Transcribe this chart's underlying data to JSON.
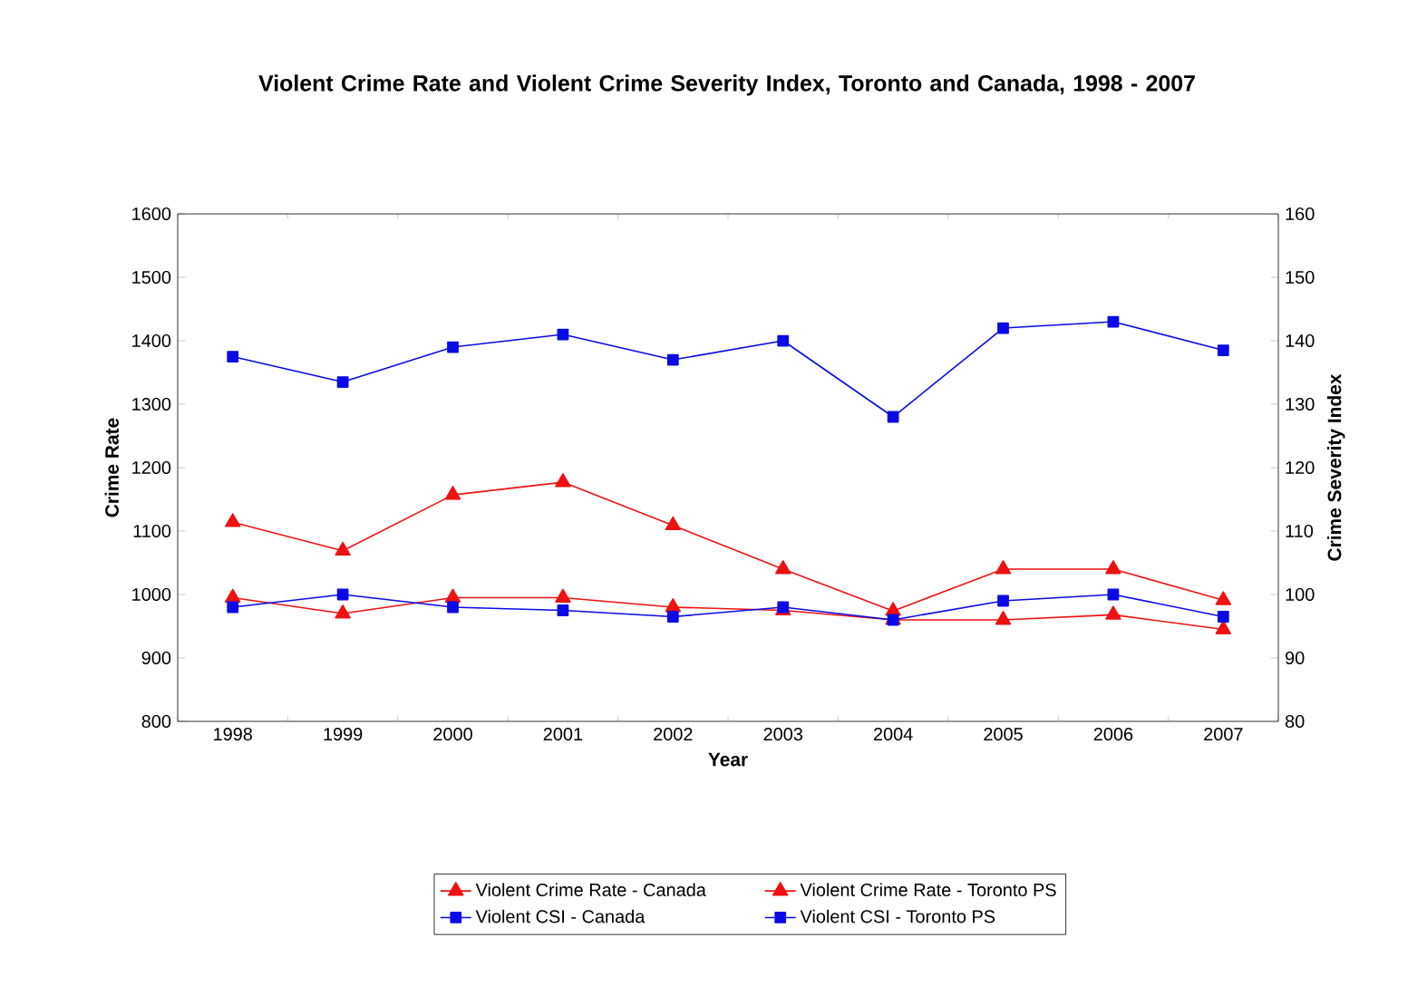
{
  "chart_data": {
    "type": "line",
    "title": "Violent Crime Rate and Violent Crime Severity Index, Toronto and Canada, 1998 - 2007",
    "xlabel": "Year",
    "ylabel": "Crime Rate",
    "y2label": "Crime Severity Index",
    "categories": [
      "1998",
      "1999",
      "2000",
      "2001",
      "2002",
      "2003",
      "2004",
      "2005",
      "2006",
      "2007"
    ],
    "ylim": [
      800,
      1600
    ],
    "yticks": [
      800,
      900,
      1000,
      1100,
      1200,
      1300,
      1400,
      1500,
      1600
    ],
    "y2lim": [
      80,
      160
    ],
    "y2ticks": [
      80,
      90,
      100,
      110,
      120,
      130,
      140,
      150,
      160
    ],
    "legend": "bottom",
    "grid": false,
    "line_style": "solid",
    "series": [
      {
        "name": "Violent Crime Rate - Canada",
        "color": "#ee1111",
        "marker": "triangle",
        "axis": "y",
        "values": [
          995,
          970,
          995,
          995,
          980,
          975,
          960,
          960,
          968,
          945
        ]
      },
      {
        "name": "Violent Crime Rate - Toronto PS",
        "color": "#ee1111",
        "marker": "triangle",
        "axis": "y",
        "values": [
          1114,
          1069,
          1157,
          1177,
          1109,
          1040,
          974,
          1040,
          1040,
          991
        ]
      },
      {
        "name": "Violent CSI - Canada",
        "color": "#0a0ae6",
        "marker": "square",
        "axis": "y2",
        "values": [
          98,
          100,
          98,
          97.5,
          96.5,
          98,
          96,
          99,
          100,
          96.5
        ]
      },
      {
        "name": "Violent CSI - Toronto PS",
        "color": "#0a0ae6",
        "marker": "square",
        "axis": "y2",
        "values": [
          137.5,
          133.5,
          139,
          141,
          137,
          140,
          128,
          142,
          143,
          138.5
        ]
      }
    ]
  }
}
